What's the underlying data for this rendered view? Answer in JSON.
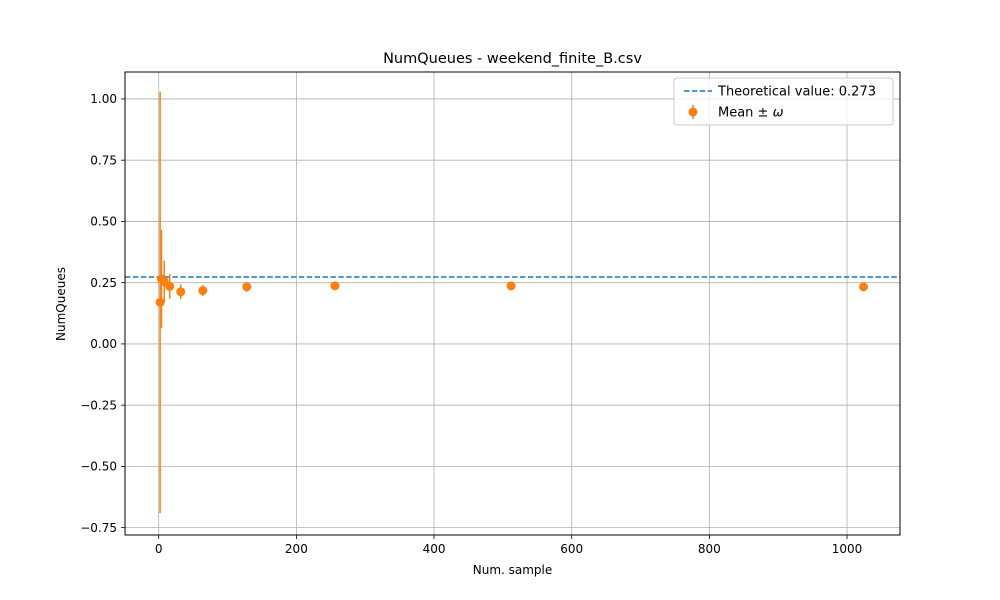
{
  "chart_data": {
    "type": "scatter",
    "title": "NumQueues - weekend_finite_B.csv",
    "xlabel": "Num. sample",
    "ylabel": "NumQueues",
    "xlim": [
      -49,
      1077
    ],
    "ylim": [
      -0.78,
      1.11
    ],
    "xticks": [
      0,
      200,
      400,
      600,
      800,
      1000
    ],
    "yticks": [
      -0.75,
      -0.5,
      -0.25,
      0.0,
      0.25,
      0.5,
      0.75,
      1.0
    ],
    "xtick_labels": [
      "0",
      "200",
      "400",
      "600",
      "800",
      "1000"
    ],
    "ytick_labels": [
      "−0.75",
      "−0.50",
      "−0.25",
      "0.00",
      "0.25",
      "0.50",
      "0.75",
      "1.00"
    ],
    "grid": true,
    "legend_position": "top-right",
    "reference_line": {
      "name": "Theoretical value: 0.273",
      "value": 0.273,
      "style": "dashed",
      "color": "#1f77b4"
    },
    "series": [
      {
        "name": "Mean ± ω",
        "color": "#ff7f0e",
        "points": [
          {
            "x": 2,
            "y": 0.17,
            "err": 0.86
          },
          {
            "x": 4,
            "y": 0.265,
            "err": 0.2
          },
          {
            "x": 8,
            "y": 0.255,
            "err": 0.085
          },
          {
            "x": 16,
            "y": 0.235,
            "err": 0.05
          },
          {
            "x": 32,
            "y": 0.213,
            "err": 0.03
          },
          {
            "x": 64,
            "y": 0.218,
            "err": 0.022
          },
          {
            "x": 128,
            "y": 0.233,
            "err": 0.02
          },
          {
            "x": 256,
            "y": 0.237,
            "err": 0.012
          },
          {
            "x": 512,
            "y": 0.237,
            "err": 0.008
          },
          {
            "x": 1024,
            "y": 0.233,
            "err": 0.005
          }
        ]
      }
    ]
  },
  "legend": {
    "line_label": "Theoretical value: 0.273",
    "marker_label_text": "Mean ± ",
    "marker_label_symbol": "ω"
  }
}
